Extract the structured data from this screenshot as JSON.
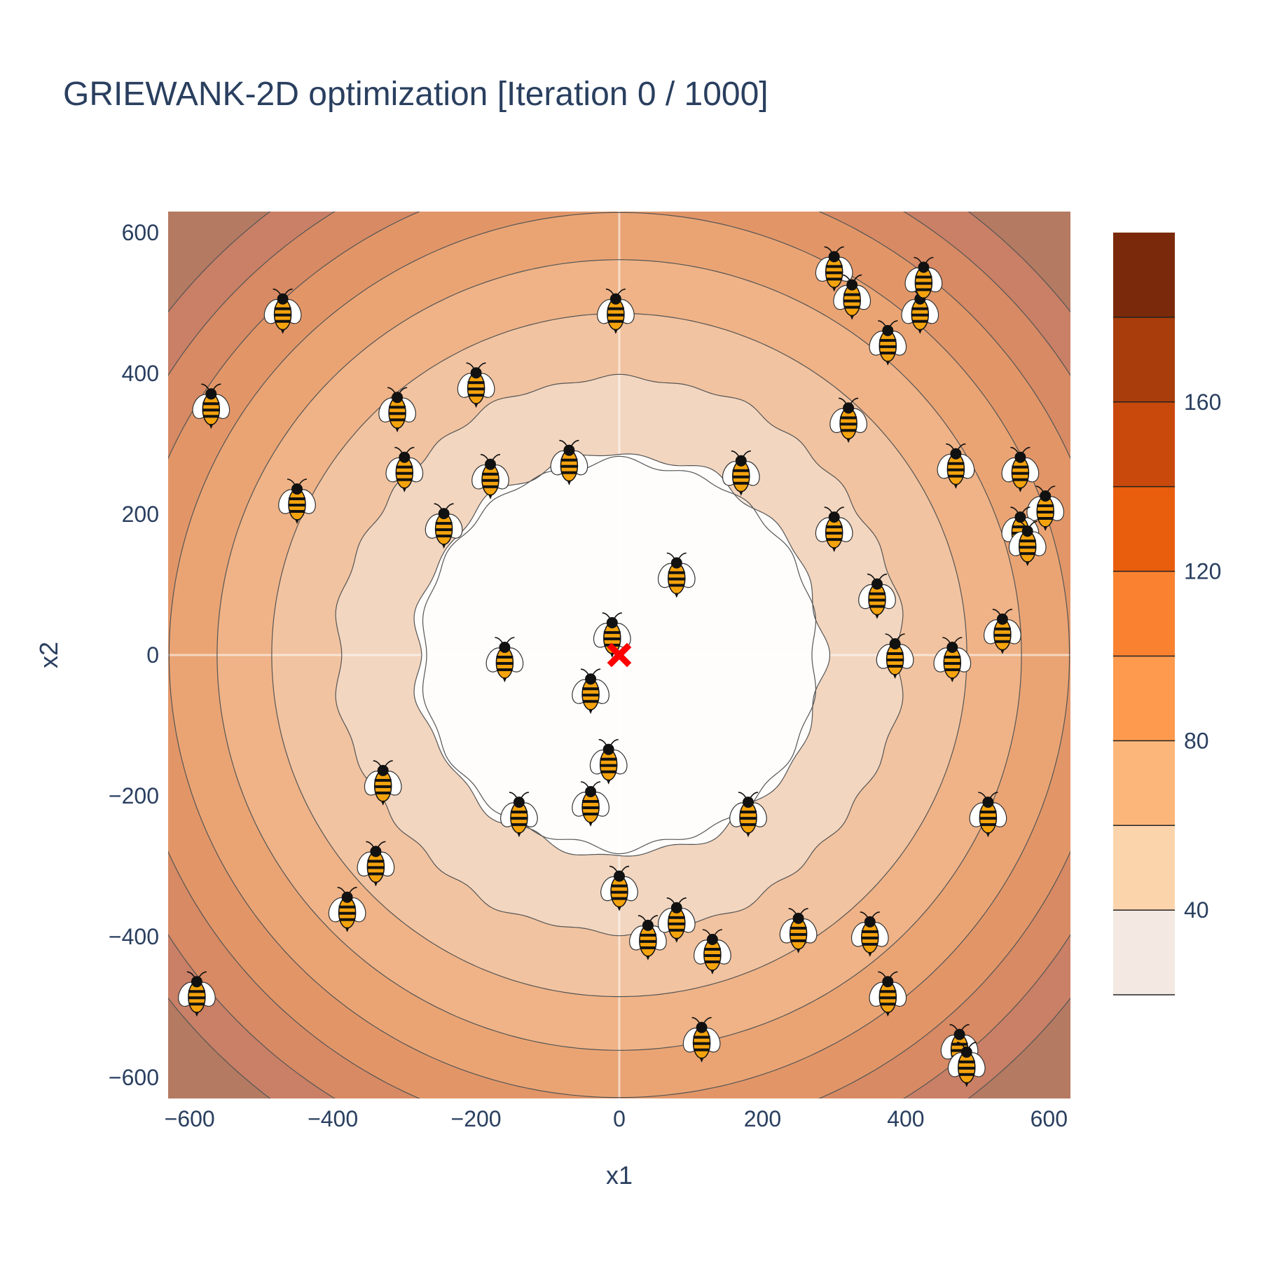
{
  "chart_data": {
    "type": "contour",
    "title": "GRIEWANK-2D optimization [Iteration 0 / 1000]",
    "xlabel": "x1",
    "ylabel": "x2",
    "xlim": [
      -630,
      630
    ],
    "ylim": [
      -630,
      630
    ],
    "x_ticks": [
      -600,
      -400,
      -200,
      0,
      200,
      400,
      600
    ],
    "y_ticks": [
      -600,
      -400,
      -200,
      0,
      200,
      400,
      600
    ],
    "x_tick_labels": [
      "−600",
      "−400",
      "−200",
      "0",
      "200",
      "400",
      "600"
    ],
    "y_tick_labels": [
      "−600",
      "−400",
      "−200",
      "0",
      "200",
      "400",
      "600"
    ],
    "contour_levels": [
      20,
      40,
      60,
      80,
      100,
      120,
      140,
      160,
      180
    ],
    "colorscale": [
      "#f3e9e2",
      "#fbd4ac",
      "#fdb67a",
      "#fd9a4e",
      "#f98130",
      "#e95e0d",
      "#c9490c",
      "#a93d0b",
      "#7a2a0a"
    ],
    "colorbar": {
      "range": [
        20,
        200
      ],
      "tick_values": [
        40,
        80,
        120,
        160
      ],
      "tick_labels": [
        "40",
        "80",
        "120",
        "160"
      ]
    },
    "global_minimum": {
      "x": 0,
      "y": 0,
      "marker": "x",
      "color": "#ff0000"
    },
    "agents": [
      {
        "x": -10,
        "y": 30
      },
      {
        "x": -40,
        "y": -50
      },
      {
        "x": -160,
        "y": -5
      },
      {
        "x": -15,
        "y": -150
      },
      {
        "x": -40,
        "y": -210
      },
      {
        "x": 80,
        "y": 115
      },
      {
        "x": -140,
        "y": -225
      },
      {
        "x": 180,
        "y": -225
      },
      {
        "x": 0,
        "y": -330
      },
      {
        "x": 40,
        "y": -400
      },
      {
        "x": 80,
        "y": -375
      },
      {
        "x": 130,
        "y": -420
      },
      {
        "x": 250,
        "y": -390
      },
      {
        "x": 350,
        "y": -395
      },
      {
        "x": 375,
        "y": -480
      },
      {
        "x": 115,
        "y": -545
      },
      {
        "x": 475,
        "y": -555
      },
      {
        "x": 485,
        "y": -580
      },
      {
        "x": 515,
        "y": -225
      },
      {
        "x": 535,
        "y": 35
      },
      {
        "x": 465,
        "y": -5
      },
      {
        "x": 385,
        "y": 0
      },
      {
        "x": 360,
        "y": 85
      },
      {
        "x": 300,
        "y": 180
      },
      {
        "x": 320,
        "y": 335
      },
      {
        "x": 470,
        "y": 270
      },
      {
        "x": 560,
        "y": 265
      },
      {
        "x": 595,
        "y": 210
      },
      {
        "x": 560,
        "y": 180
      },
      {
        "x": 570,
        "y": 160
      },
      {
        "x": 375,
        "y": 445
      },
      {
        "x": 420,
        "y": 490
      },
      {
        "x": 425,
        "y": 535
      },
      {
        "x": 300,
        "y": 550
      },
      {
        "x": 325,
        "y": 510
      },
      {
        "x": -5,
        "y": 490
      },
      {
        "x": -470,
        "y": 490
      },
      {
        "x": -570,
        "y": 355
      },
      {
        "x": -450,
        "y": 220
      },
      {
        "x": -310,
        "y": 350
      },
      {
        "x": -300,
        "y": 265
      },
      {
        "x": -200,
        "y": 385
      },
      {
        "x": -180,
        "y": 255
      },
      {
        "x": -70,
        "y": 275
      },
      {
        "x": -245,
        "y": 185
      },
      {
        "x": 170,
        "y": 260
      },
      {
        "x": -330,
        "y": -180
      },
      {
        "x": -340,
        "y": -295
      },
      {
        "x": -380,
        "y": -360
      },
      {
        "x": -590,
        "y": -480
      }
    ]
  }
}
